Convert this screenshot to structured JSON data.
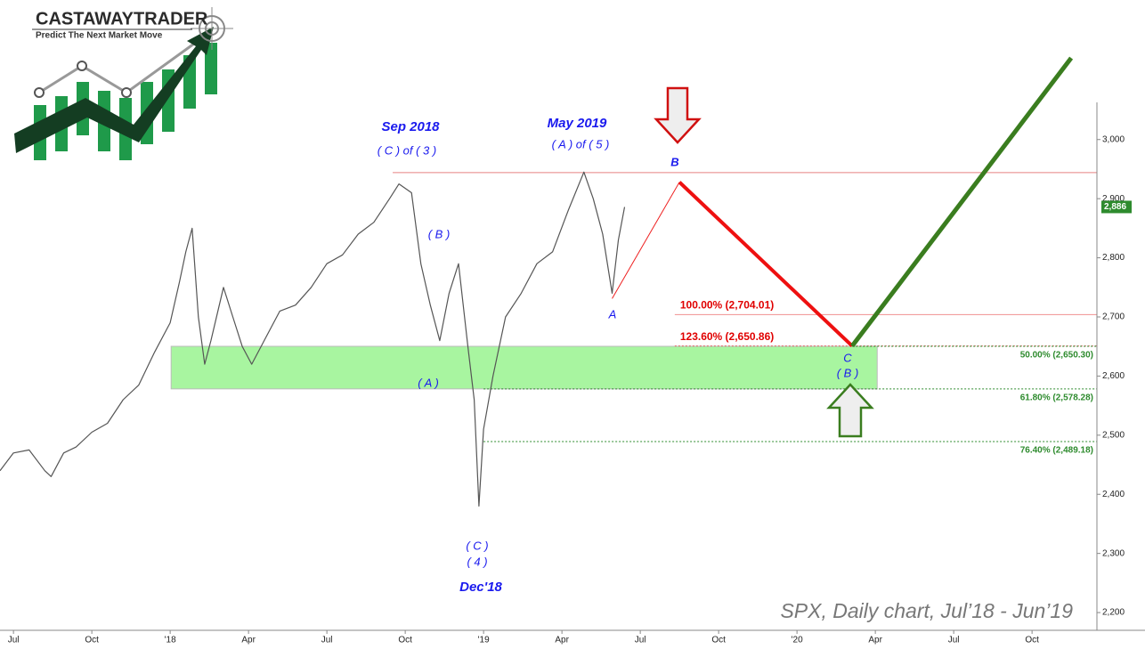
{
  "logo": {
    "name": "CASTAWAYTRADER",
    "tagline": "Predict The Next Market Move"
  },
  "chart_data": {
    "type": "line",
    "watermark": "SPX, Daily chart, Jul’18 - Jun’19",
    "xlim": [
      2017.457,
      2020.957
    ],
    "xticks": [
      {
        "value": 2017.5,
        "label": "Jul"
      },
      {
        "value": 2017.75,
        "label": "Oct"
      },
      {
        "value": 2018,
        "label": "'18"
      },
      {
        "value": 2018.25,
        "label": "Apr"
      },
      {
        "value": 2018.5,
        "label": "Jul"
      },
      {
        "value": 2018.75,
        "label": "Oct"
      },
      {
        "value": 2019,
        "label": "'19"
      },
      {
        "value": 2019.25,
        "label": "Apr"
      },
      {
        "value": 2019.5,
        "label": "Jul"
      },
      {
        "value": 2019.75,
        "label": "Oct"
      },
      {
        "value": 2020,
        "label": "'20"
      },
      {
        "value": 2020.25,
        "label": "Apr"
      },
      {
        "value": 2020.5,
        "label": "Jul"
      },
      {
        "value": 2020.75,
        "label": "Oct"
      }
    ],
    "ylim": [
      2170,
      3236
    ],
    "yticks": [
      {
        "value": 2200,
        "label": "2,200"
      },
      {
        "value": 2300,
        "label": "2,300"
      },
      {
        "value": 2400,
        "label": "2,400"
      },
      {
        "value": 2500,
        "label": "2,500"
      },
      {
        "value": 2600,
        "label": "2,600"
      },
      {
        "value": 2700,
        "label": "2,700"
      },
      {
        "value": 2800,
        "label": "2,800"
      },
      {
        "value": 2900,
        "label": "2,900"
      },
      {
        "value": 3000,
        "label": "3,000"
      }
    ],
    "last_price": {
      "value": 2886,
      "label": "2,886",
      "color": "#2e8b2e"
    },
    "series": [
      {
        "color": "#555555",
        "width": 1.2,
        "x": [
          2017.457,
          2017.5,
          2017.55,
          2017.6,
          2017.62,
          2017.66,
          2017.7,
          2017.75,
          2017.8,
          2017.85,
          2017.9,
          2017.95,
          2018.0,
          2018.03,
          2018.05,
          2018.07,
          2018.09,
          2018.11,
          2018.13,
          2018.17,
          2018.2,
          2018.23,
          2018.26,
          2018.3,
          2018.35,
          2018.4,
          2018.45,
          2018.5,
          2018.55,
          2018.6,
          2018.65,
          2018.7,
          2018.73,
          2018.77,
          2018.8,
          2018.83,
          2018.86,
          2018.89,
          2018.92,
          2018.95,
          2018.97,
          2018.985,
          2019.0,
          2019.03,
          2019.07,
          2019.12,
          2019.17,
          2019.22,
          2019.27,
          2019.32,
          2019.35,
          2019.38,
          2019.41,
          2019.43,
          2019.45
        ],
        "values": [
          2440,
          2470,
          2475,
          2440,
          2430,
          2470,
          2480,
          2505,
          2520,
          2560,
          2585,
          2640,
          2690,
          2760,
          2810,
          2850,
          2700,
          2620,
          2660,
          2750,
          2700,
          2650,
          2620,
          2660,
          2710,
          2720,
          2750,
          2790,
          2805,
          2840,
          2860,
          2900,
          2925,
          2910,
          2790,
          2720,
          2660,
          2740,
          2790,
          2650,
          2560,
          2380,
          2510,
          2600,
          2700,
          2740,
          2790,
          2810,
          2880,
          2945,
          2900,
          2840,
          2740,
          2830,
          2886
        ]
      },
      {
        "color": "#ee2020",
        "width": 1,
        "x": [
          2019.41,
          2019.625
        ],
        "values": [
          2731,
          2928
        ]
      },
      {
        "color": "#ee1010",
        "width": 4,
        "x": [
          2019.625,
          2020.176
        ],
        "values": [
          2928,
          2650.86
        ]
      },
      {
        "color": "#3a7d1f",
        "width": 5,
        "x": [
          2020.176,
          2020.875
        ],
        "values": [
          2650.86,
          3138
        ]
      }
    ],
    "resistance": {
      "value": 2944,
      "x0": 2018.71,
      "color": "#e88080"
    },
    "zone": {
      "x": [
        2018.003,
        2020.256
      ],
      "y": [
        2578.28,
        2650.3
      ],
      "color": "#a8f5a0"
    },
    "levels": [
      {
        "label": "100.00% (2,704.01)",
        "value": 2704.01,
        "x0": 2019.61,
        "color": "#e00000",
        "line": "#f09090",
        "dash": false,
        "align": "start"
      },
      {
        "label": "123.60% (2,650.86)",
        "value": 2650.86,
        "x0": 2019.61,
        "color": "#e00000",
        "line": "#e06060",
        "dash": true,
        "align": "start"
      },
      {
        "label": "50.00% (2,650.30)",
        "value": 2650.3,
        "x0": 2020.176,
        "color": "#2e8b2e",
        "line": "#2e8b2e",
        "dash": true,
        "align": "end"
      },
      {
        "label": "61.80% (2,578.28)",
        "value": 2578.28,
        "x0": 2019.0,
        "color": "#2e8b2e",
        "line": "#2e8b2e",
        "dash": true,
        "align": "end"
      },
      {
        "label": "76.40% (2,489.18)",
        "value": 2489.18,
        "x0": 2019.0,
        "color": "#2e8b2e",
        "line": "#2e8b2e",
        "dash": true,
        "align": "end"
      }
    ],
    "annotations": [
      "Sep 2018",
      "( C ) of ( 3 )",
      "May 2019",
      "( A ) of ( 5 )",
      "( B )",
      "( A )",
      "( C )",
      "( 4 )",
      "Dec'18",
      "A",
      "B",
      "C",
      "( B )"
    ]
  }
}
